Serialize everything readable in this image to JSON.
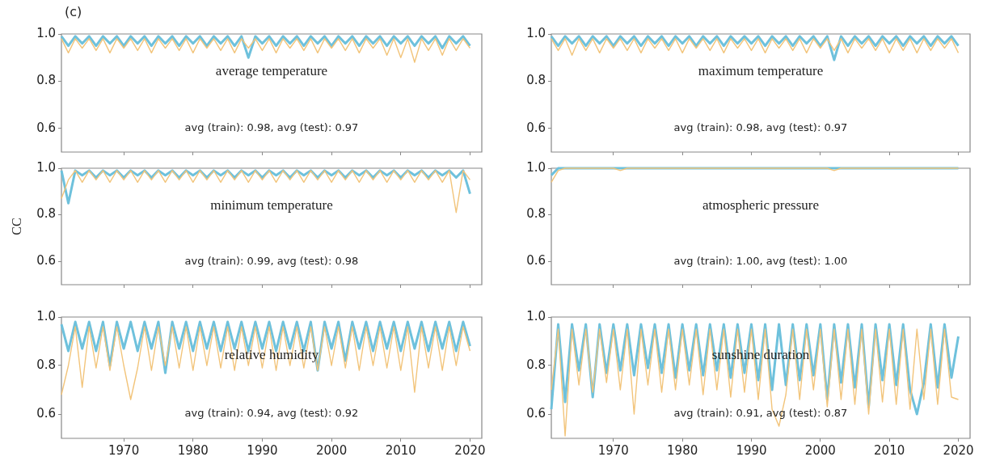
{
  "chart_data": [
    {
      "type": "line",
      "title": "average temperature",
      "annotations": [
        "(c)",
        "avg (train): 0.98, avg (test): 0.97"
      ],
      "tick_labels": "y",
      "marker": "none",
      "xlim": [
        1961,
        2021.7
      ],
      "xticks": [
        1970,
        1980,
        1990,
        2000,
        2010,
        2020
      ],
      "ylim": [
        0.5,
        1.0
      ],
      "yticks": [
        {
          "value": 0.6,
          "label": "0.6"
        },
        {
          "value": 0.8,
          "label": "0.8"
        },
        {
          "value": 1,
          "label": "1.0"
        }
      ],
      "x": [
        1961,
        1962,
        1963,
        1964,
        1965,
        1966,
        1967,
        1968,
        1969,
        1970,
        1971,
        1972,
        1973,
        1974,
        1975,
        1976,
        1977,
        1978,
        1979,
        1980,
        1981,
        1982,
        1983,
        1984,
        1985,
        1986,
        1987,
        1988,
        1989,
        1990,
        1991,
        1992,
        1993,
        1994,
        1995,
        1996,
        1997,
        1998,
        1999,
        2000,
        2001,
        2002,
        2003,
        2004,
        2005,
        2006,
        2007,
        2008,
        2009,
        2010,
        2011,
        2012,
        2013,
        2014,
        2015,
        2016,
        2017,
        2018,
        2019,
        2020
      ],
      "series": [
        {
          "color": "#6ec1dc",
          "values": [
            0.99,
            0.95,
            0.99,
            0.96,
            0.99,
            0.95,
            0.99,
            0.96,
            0.99,
            0.95,
            0.99,
            0.96,
            0.99,
            0.95,
            0.99,
            0.96,
            0.99,
            0.95,
            0.99,
            0.96,
            0.99,
            0.95,
            0.99,
            0.96,
            0.99,
            0.95,
            0.99,
            0.9,
            0.99,
            0.96,
            0.99,
            0.95,
            0.99,
            0.96,
            0.99,
            0.95,
            0.99,
            0.96,
            0.99,
            0.95,
            0.99,
            0.96,
            0.99,
            0.95,
            0.99,
            0.96,
            0.99,
            0.95,
            0.99,
            0.96,
            0.99,
            0.95,
            0.99,
            0.96,
            0.99,
            0.94,
            0.99,
            0.96,
            0.99,
            0.95
          ]
        },
        {
          "color": "#f2c47a",
          "values": [
            0.98,
            0.92,
            0.98,
            0.94,
            0.98,
            0.93,
            0.98,
            0.92,
            0.98,
            0.94,
            0.98,
            0.93,
            0.98,
            0.92,
            0.98,
            0.94,
            0.98,
            0.93,
            0.98,
            0.92,
            0.98,
            0.94,
            0.98,
            0.93,
            0.98,
            0.92,
            0.98,
            0.94,
            0.98,
            0.93,
            0.98,
            0.92,
            0.98,
            0.94,
            0.98,
            0.93,
            0.98,
            0.92,
            0.98,
            0.94,
            0.98,
            0.93,
            0.98,
            0.92,
            0.98,
            0.94,
            0.98,
            0.91,
            0.98,
            0.9,
            0.98,
            0.88,
            0.98,
            0.93,
            0.98,
            0.91,
            0.98,
            0.93,
            0.98,
            0.94
          ]
        }
      ]
    },
    {
      "type": "line",
      "title": "maximum temperature",
      "annotations": [
        "avg (train): 0.98, avg (test): 0.97"
      ],
      "tick_labels": "y",
      "marker": "none",
      "xlim": [
        1961,
        2021.7
      ],
      "xticks": [
        1970,
        1980,
        1990,
        2000,
        2010,
        2020
      ],
      "ylim": [
        0.5,
        1.0
      ],
      "yticks": [
        {
          "value": 0.6,
          "label": "0.6"
        },
        {
          "value": 0.8,
          "label": "0.8"
        },
        {
          "value": 1,
          "label": "1.0"
        }
      ],
      "x": [
        1961,
        1962,
        1963,
        1964,
        1965,
        1966,
        1967,
        1968,
        1969,
        1970,
        1971,
        1972,
        1973,
        1974,
        1975,
        1976,
        1977,
        1978,
        1979,
        1980,
        1981,
        1982,
        1983,
        1984,
        1985,
        1986,
        1987,
        1988,
        1989,
        1990,
        1991,
        1992,
        1993,
        1994,
        1995,
        1996,
        1997,
        1998,
        1999,
        2000,
        2001,
        2002,
        2003,
        2004,
        2005,
        2006,
        2007,
        2008,
        2009,
        2010,
        2011,
        2012,
        2013,
        2014,
        2015,
        2016,
        2017,
        2018,
        2019,
        2020
      ],
      "series": [
        {
          "color": "#6ec1dc",
          "values": [
            0.99,
            0.95,
            0.99,
            0.96,
            0.99,
            0.95,
            0.99,
            0.96,
            0.99,
            0.95,
            0.99,
            0.96,
            0.99,
            0.95,
            0.99,
            0.96,
            0.99,
            0.95,
            0.99,
            0.96,
            0.99,
            0.95,
            0.99,
            0.96,
            0.99,
            0.95,
            0.99,
            0.96,
            0.99,
            0.96,
            0.99,
            0.95,
            0.99,
            0.96,
            0.99,
            0.95,
            0.99,
            0.96,
            0.99,
            0.95,
            0.99,
            0.89,
            0.99,
            0.95,
            0.99,
            0.96,
            0.99,
            0.95,
            0.99,
            0.96,
            0.99,
            0.95,
            0.99,
            0.96,
            0.99,
            0.95,
            0.99,
            0.96,
            0.99,
            0.95
          ]
        },
        {
          "color": "#f2c47a",
          "values": [
            0.98,
            0.93,
            0.98,
            0.91,
            0.98,
            0.93,
            0.98,
            0.92,
            0.98,
            0.94,
            0.98,
            0.93,
            0.98,
            0.92,
            0.98,
            0.94,
            0.98,
            0.93,
            0.98,
            0.92,
            0.98,
            0.94,
            0.98,
            0.93,
            0.98,
            0.92,
            0.98,
            0.94,
            0.98,
            0.93,
            0.98,
            0.92,
            0.98,
            0.94,
            0.98,
            0.93,
            0.98,
            0.92,
            0.98,
            0.94,
            0.98,
            0.93,
            0.98,
            0.92,
            0.98,
            0.94,
            0.98,
            0.93,
            0.98,
            0.92,
            0.98,
            0.93,
            0.98,
            0.92,
            0.98,
            0.93,
            0.98,
            0.94,
            0.98,
            0.92
          ]
        }
      ]
    },
    {
      "type": "line",
      "title": "minimum temperature",
      "ylabel": "CC",
      "annotations": [
        "avg (train): 0.99, avg (test): 0.98"
      ],
      "tick_labels": "y",
      "marker": "none",
      "xlim": [
        1961,
        2021.7
      ],
      "xticks": [
        1970,
        1980,
        1990,
        2000,
        2010,
        2020
      ],
      "ylim": [
        0.5,
        1.0
      ],
      "yticks": [
        {
          "value": 0.6,
          "label": "0.6"
        },
        {
          "value": 0.8,
          "label": "0.8"
        },
        {
          "value": 1,
          "label": "1.0"
        }
      ],
      "x": [
        1961,
        1962,
        1963,
        1964,
        1965,
        1966,
        1967,
        1968,
        1969,
        1970,
        1971,
        1972,
        1973,
        1974,
        1975,
        1976,
        1977,
        1978,
        1979,
        1980,
        1981,
        1982,
        1983,
        1984,
        1985,
        1986,
        1987,
        1988,
        1989,
        1990,
        1991,
        1992,
        1993,
        1994,
        1995,
        1996,
        1997,
        1998,
        1999,
        2000,
        2001,
        2002,
        2003,
        2004,
        2005,
        2006,
        2007,
        2008,
        2009,
        2010,
        2011,
        2012,
        2013,
        2014,
        2015,
        2016,
        2017,
        2018,
        2019,
        2020
      ],
      "series": [
        {
          "color": "#6ec1dc",
          "values": [
            0.99,
            0.85,
            0.99,
            0.97,
            0.99,
            0.96,
            0.99,
            0.97,
            0.99,
            0.96,
            0.99,
            0.97,
            0.99,
            0.96,
            0.99,
            0.97,
            0.99,
            0.96,
            0.99,
            0.97,
            0.99,
            0.96,
            0.99,
            0.97,
            0.99,
            0.96,
            0.99,
            0.97,
            0.99,
            0.96,
            0.99,
            0.97,
            0.99,
            0.96,
            0.99,
            0.97,
            0.99,
            0.96,
            0.99,
            0.97,
            0.99,
            0.96,
            0.99,
            0.97,
            0.99,
            0.96,
            0.99,
            0.97,
            0.99,
            0.96,
            0.99,
            0.97,
            0.99,
            0.96,
            0.99,
            0.97,
            0.99,
            0.96,
            0.99,
            0.89
          ]
        },
        {
          "color": "#f2c47a",
          "values": [
            0.87,
            0.95,
            0.99,
            0.94,
            0.99,
            0.95,
            0.99,
            0.94,
            0.99,
            0.95,
            0.99,
            0.94,
            0.99,
            0.95,
            0.99,
            0.94,
            0.99,
            0.95,
            0.99,
            0.94,
            0.99,
            0.95,
            0.99,
            0.94,
            0.99,
            0.95,
            0.99,
            0.94,
            0.99,
            0.95,
            0.99,
            0.94,
            0.99,
            0.95,
            0.99,
            0.94,
            0.99,
            0.95,
            0.99,
            0.94,
            0.99,
            0.95,
            0.99,
            0.94,
            0.99,
            0.95,
            0.99,
            0.94,
            0.99,
            0.95,
            0.99,
            0.94,
            0.99,
            0.95,
            0.99,
            0.94,
            0.99,
            0.81,
            0.99,
            0.95
          ]
        }
      ]
    },
    {
      "type": "line",
      "title": "atmospheric pressure",
      "annotations": [
        "avg (train): 1.00, avg (test): 1.00"
      ],
      "tick_labels": "y",
      "marker": "none",
      "xlim": [
        1961,
        2021.7
      ],
      "xticks": [
        1970,
        1980,
        1990,
        2000,
        2010,
        2020
      ],
      "ylim": [
        0.5,
        1.0
      ],
      "yticks": [
        {
          "value": 0.6,
          "label": "0.6"
        },
        {
          "value": 0.8,
          "label": "0.8"
        },
        {
          "value": 1,
          "label": "1.0"
        }
      ],
      "x": [
        1961,
        1962,
        1963,
        1964,
        1965,
        1966,
        1967,
        1968,
        1969,
        1970,
        1971,
        1972,
        1973,
        1974,
        1975,
        1976,
        1977,
        1978,
        1979,
        1980,
        1981,
        1982,
        1983,
        1984,
        1985,
        1986,
        1987,
        1988,
        1989,
        1990,
        1991,
        1992,
        1993,
        1994,
        1995,
        1996,
        1997,
        1998,
        1999,
        2000,
        2001,
        2002,
        2003,
        2004,
        2005,
        2006,
        2007,
        2008,
        2009,
        2010,
        2011,
        2012,
        2013,
        2014,
        2015,
        2016,
        2017,
        2018,
        2019,
        2020
      ],
      "series": [
        {
          "color": "#6ec1dc",
          "values": [
            0.97,
            1.0,
            1.0,
            1.0,
            1.0,
            1.0,
            1.0,
            1.0,
            1.0,
            1.0,
            1.0,
            1.0,
            1.0,
            1.0,
            1.0,
            1.0,
            1.0,
            1.0,
            1.0,
            1.0,
            1.0,
            1.0,
            1.0,
            1.0,
            1.0,
            1.0,
            1.0,
            1.0,
            1.0,
            1.0,
            1.0,
            1.0,
            1.0,
            1.0,
            1.0,
            1.0,
            1.0,
            1.0,
            1.0,
            1.0,
            1.0,
            1.0,
            1.0,
            1.0,
            1.0,
            1.0,
            1.0,
            1.0,
            1.0,
            1.0,
            1.0,
            1.0,
            1.0,
            1.0,
            1.0,
            1.0,
            1.0,
            1.0,
            1.0,
            1.0
          ]
        },
        {
          "color": "#f2c47a",
          "values": [
            0.94,
            0.99,
            1.0,
            1.0,
            1.0,
            1.0,
            1.0,
            1.0,
            1.0,
            1.0,
            0.99,
            1.0,
            1.0,
            1.0,
            1.0,
            1.0,
            1.0,
            1.0,
            1.0,
            1.0,
            1.0,
            1.0,
            1.0,
            1.0,
            1.0,
            1.0,
            1.0,
            1.0,
            1.0,
            1.0,
            1.0,
            1.0,
            1.0,
            1.0,
            1.0,
            1.0,
            1.0,
            1.0,
            1.0,
            1.0,
            1.0,
            0.99,
            1.0,
            1.0,
            1.0,
            1.0,
            1.0,
            1.0,
            1.0,
            1.0,
            1.0,
            1.0,
            1.0,
            1.0,
            1.0,
            1.0,
            1.0,
            1.0,
            1.0,
            1.0
          ]
        }
      ]
    },
    {
      "type": "line",
      "title": "relative humidity",
      "annotations": [
        "avg (train): 0.94, avg (test): 0.92"
      ],
      "marker": "none",
      "xlim": [
        1961,
        2021.7
      ],
      "xticks": [
        1970,
        1980,
        1990,
        2000,
        2010,
        2020
      ],
      "ylim": [
        0.5,
        1.0
      ],
      "yticks": [
        {
          "value": 0.6,
          "label": "0.6"
        },
        {
          "value": 0.8,
          "label": "0.8"
        },
        {
          "value": 1,
          "label": "1.0"
        }
      ],
      "x": [
        1961,
        1962,
        1963,
        1964,
        1965,
        1966,
        1967,
        1968,
        1969,
        1970,
        1971,
        1972,
        1973,
        1974,
        1975,
        1976,
        1977,
        1978,
        1979,
        1980,
        1981,
        1982,
        1983,
        1984,
        1985,
        1986,
        1987,
        1988,
        1989,
        1990,
        1991,
        1992,
        1993,
        1994,
        1995,
        1996,
        1997,
        1998,
        1999,
        2000,
        2001,
        2002,
        2003,
        2004,
        2005,
        2006,
        2007,
        2008,
        2009,
        2010,
        2011,
        2012,
        2013,
        2014,
        2015,
        2016,
        2017,
        2018,
        2019,
        2020
      ],
      "series": [
        {
          "color": "#6ec1dc",
          "values": [
            0.97,
            0.86,
            0.98,
            0.87,
            0.98,
            0.86,
            0.98,
            0.8,
            0.98,
            0.87,
            0.98,
            0.86,
            0.98,
            0.87,
            0.98,
            0.77,
            0.98,
            0.87,
            0.98,
            0.86,
            0.98,
            0.87,
            0.98,
            0.86,
            0.98,
            0.87,
            0.98,
            0.86,
            0.98,
            0.87,
            0.98,
            0.86,
            0.98,
            0.87,
            0.98,
            0.86,
            0.98,
            0.78,
            0.98,
            0.87,
            0.98,
            0.82,
            0.98,
            0.87,
            0.98,
            0.86,
            0.98,
            0.87,
            0.98,
            0.86,
            0.98,
            0.87,
            0.98,
            0.86,
            0.98,
            0.87,
            0.98,
            0.86,
            0.98,
            0.88
          ]
        },
        {
          "color": "#f2c47a",
          "values": [
            0.68,
            0.8,
            0.96,
            0.71,
            0.96,
            0.79,
            0.96,
            0.78,
            0.96,
            0.8,
            0.66,
            0.79,
            0.96,
            0.78,
            0.96,
            0.8,
            0.96,
            0.79,
            0.96,
            0.78,
            0.96,
            0.8,
            0.96,
            0.79,
            0.96,
            0.78,
            0.96,
            0.8,
            0.96,
            0.79,
            0.96,
            0.78,
            0.96,
            0.8,
            0.96,
            0.79,
            0.96,
            0.78,
            0.96,
            0.8,
            0.96,
            0.79,
            0.96,
            0.78,
            0.96,
            0.8,
            0.96,
            0.79,
            0.96,
            0.78,
            0.96,
            0.69,
            0.96,
            0.79,
            0.96,
            0.78,
            0.96,
            0.8,
            0.96,
            0.86
          ]
        }
      ]
    },
    {
      "type": "line",
      "title": "sunshine duration",
      "annotations": [
        "avg (train): 0.91, avg (test): 0.87"
      ],
      "marker": "none",
      "xlim": [
        1961,
        2021.7
      ],
      "xticks": [
        1970,
        1980,
        1990,
        2000,
        2010,
        2020
      ],
      "ylim": [
        0.5,
        1.0
      ],
      "yticks": [
        {
          "value": 0.6,
          "label": "0.6"
        },
        {
          "value": 0.8,
          "label": "0.8"
        },
        {
          "value": 1,
          "label": "1.0"
        }
      ],
      "x": [
        1961,
        1962,
        1963,
        1964,
        1965,
        1966,
        1967,
        1968,
        1969,
        1970,
        1971,
        1972,
        1973,
        1974,
        1975,
        1976,
        1977,
        1978,
        1979,
        1980,
        1981,
        1982,
        1983,
        1984,
        1985,
        1986,
        1987,
        1988,
        1989,
        1990,
        1991,
        1992,
        1993,
        1994,
        1995,
        1996,
        1997,
        1998,
        1999,
        2000,
        2001,
        2002,
        2003,
        2004,
        2005,
        2006,
        2007,
        2008,
        2009,
        2010,
        2011,
        2012,
        2013,
        2014,
        2015,
        2016,
        2017,
        2018,
        2019,
        2020
      ],
      "series": [
        {
          "color": "#6ec1dc",
          "values": [
            0.62,
            0.97,
            0.65,
            0.97,
            0.78,
            0.97,
            0.67,
            0.97,
            0.77,
            0.97,
            0.78,
            0.97,
            0.76,
            0.97,
            0.79,
            0.97,
            0.77,
            0.97,
            0.75,
            0.97,
            0.78,
            0.97,
            0.76,
            0.97,
            0.78,
            0.97,
            0.75,
            0.97,
            0.77,
            0.97,
            0.74,
            0.97,
            0.7,
            0.97,
            0.72,
            0.97,
            0.74,
            0.97,
            0.76,
            0.97,
            0.66,
            0.97,
            0.73,
            0.97,
            0.71,
            0.97,
            0.63,
            0.97,
            0.74,
            0.97,
            0.72,
            0.97,
            0.7,
            0.6,
            0.73,
            0.97,
            0.71,
            0.97,
            0.75,
            0.92
          ]
        },
        {
          "color": "#f2c47a",
          "values": [
            0.7,
            0.95,
            0.51,
            0.95,
            0.72,
            0.95,
            0.69,
            0.95,
            0.73,
            0.95,
            0.7,
            0.95,
            0.6,
            0.95,
            0.72,
            0.95,
            0.69,
            0.95,
            0.7,
            0.95,
            0.72,
            0.95,
            0.68,
            0.95,
            0.7,
            0.95,
            0.67,
            0.95,
            0.69,
            0.95,
            0.66,
            0.95,
            0.62,
            0.55,
            0.68,
            0.95,
            0.66,
            0.95,
            0.7,
            0.95,
            0.63,
            0.95,
            0.66,
            0.95,
            0.64,
            0.95,
            0.6,
            0.95,
            0.65,
            0.95,
            0.64,
            0.95,
            0.62,
            0.95,
            0.66,
            0.95,
            0.64,
            0.95,
            0.67,
            0.66
          ]
        }
      ]
    }
  ]
}
